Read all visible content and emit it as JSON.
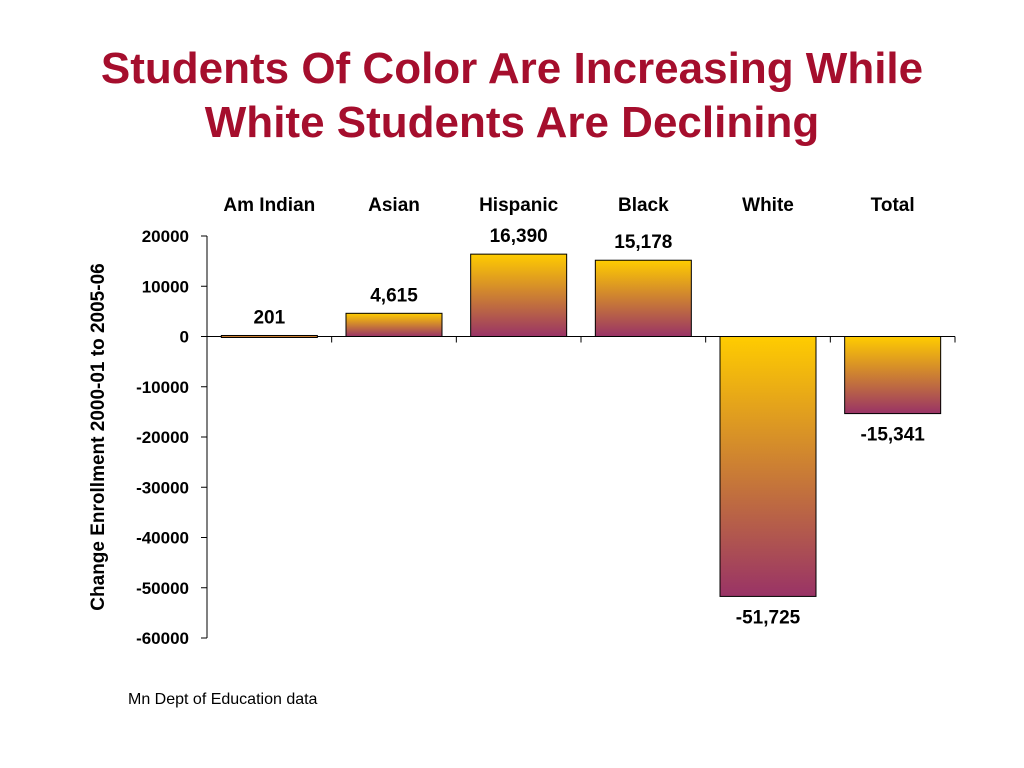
{
  "slide": {
    "title_line1": "Students Of Color Are Increasing While",
    "title_line2": "White Students Are Declining",
    "source_note": "Mn Dept of Education data"
  },
  "colors": {
    "title": "#a50e2d",
    "bar_top": "#ffcc00",
    "bar_bottom": "#993366",
    "axis": "#000000"
  },
  "chart_data": {
    "type": "bar",
    "categories": [
      "Am Indian",
      "Asian",
      "Hispanic",
      "Black",
      "White",
      "Total"
    ],
    "values": [
      201,
      4615,
      16390,
      15178,
      -51725,
      -15341
    ],
    "value_labels": [
      "201",
      "4,615",
      "16,390",
      "15,178",
      "-51,725",
      "-15,341"
    ],
    "ylabel": "Change Enrollment 2000-01 to 2005-06",
    "xlabel": "",
    "ylim": [
      -60000,
      20000
    ],
    "yticks": [
      20000,
      10000,
      0,
      -10000,
      -20000,
      -30000,
      -40000,
      -50000,
      -60000
    ],
    "category_labels_position": "top",
    "grid": false,
    "legend": false
  }
}
